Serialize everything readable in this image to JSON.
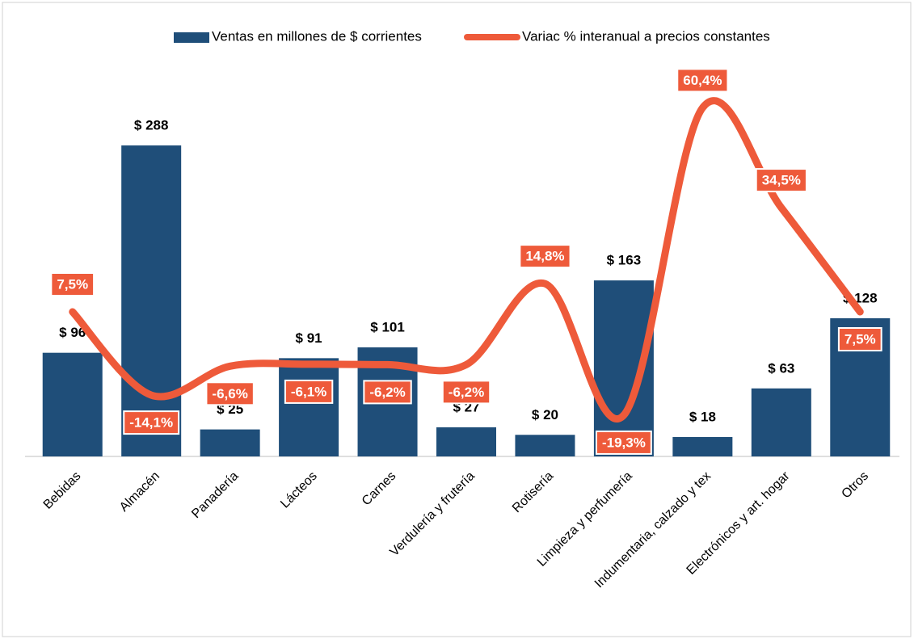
{
  "chart_data": {
    "type": "bar",
    "categories": [
      "Bebidas",
      "Almacén",
      "Panadería",
      "Lácteos",
      "Carnes",
      "Verdulería y frutería",
      "Rotisería",
      "Limpieza y perfumería",
      "Indumentaria, calzado y tex",
      "Electrónicos y art. hogar",
      "Otros"
    ],
    "series": [
      {
        "name": "Ventas en millones de $ corrientes",
        "type": "bar",
        "color": "#1f4e79",
        "values": [
          96,
          288,
          25,
          91,
          101,
          27,
          20,
          163,
          18,
          63,
          128
        ],
        "value_labels": [
          "$ 96",
          "$ 288",
          "$ 25",
          "$ 91",
          "$ 101",
          "$ 27",
          "$ 20",
          "$ 163",
          "$ 18",
          "$ 63",
          "$ 128"
        ]
      },
      {
        "name": "Variac % interanual a precios constantes",
        "type": "line",
        "axis": "y2",
        "color": "#ee5a3a",
        "values": [
          7.5,
          -14.1,
          -6.6,
          -6.1,
          -6.2,
          -6.2,
          14.8,
          -19.3,
          60.4,
          34.5,
          7.5
        ],
        "value_labels": [
          "7,5%",
          "-14,1%",
          "-6,6%",
          "-6,1%",
          "-6,2%",
          "-6,2%",
          "14,8%",
          "-19,3%",
          "60,4%",
          "34,5%",
          "7,5%"
        ]
      }
    ],
    "ylim": [
      0,
      300
    ],
    "y2lim": [
      -30,
      54
    ],
    "legend": "top"
  }
}
